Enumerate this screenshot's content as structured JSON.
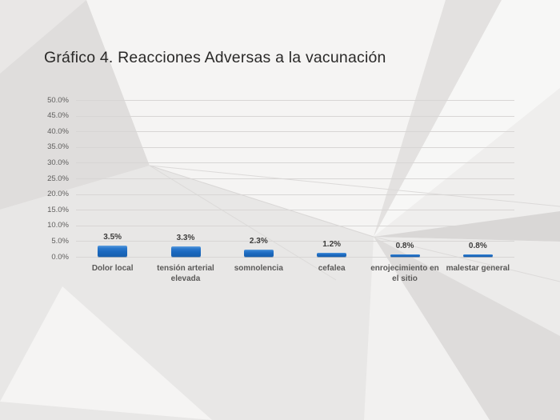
{
  "slide_title": "Gráfico 4. Reacciones Adversas a la vacunación",
  "colors": {
    "bar_fill": "#1b6cc4",
    "gridline": "#d8d6d5",
    "axis_text": "#5f5e5d",
    "value_text": "#3d3c3b",
    "title_text": "#2a2928"
  },
  "chart_data": {
    "type": "bar",
    "title": "Gráfico 4. Reacciones Adversas a la vacunación",
    "categories": [
      "Dolor local",
      "tensión arterial elevada",
      "somnolencia",
      "cefalea",
      "enrojecimiento en el sitio",
      "malestar general"
    ],
    "category_lines": [
      [
        "Dolor local"
      ],
      [
        "tensión arterial",
        "elevada"
      ],
      [
        "somnolencia"
      ],
      [
        "cefalea"
      ],
      [
        "enrojecimiento en",
        "el sitio"
      ],
      [
        "malestar general"
      ]
    ],
    "values": [
      3.5,
      3.3,
      2.3,
      1.2,
      0.8,
      0.8
    ],
    "value_labels": [
      "3.5%",
      "3.3%",
      "2.3%",
      "1.2%",
      "0.8%",
      "0.8%"
    ],
    "xlabel": "",
    "ylabel": "",
    "ylim": [
      0,
      50
    ],
    "ytick_step": 5,
    "ytick_labels": [
      "0.0%",
      "5.0%",
      "10.0%",
      "15.0%",
      "20.0%",
      "25.0%",
      "30.0%",
      "35.0%",
      "40.0%",
      "45.0%",
      "50.0%"
    ],
    "grid": true,
    "legend": false,
    "bar_color": "#1b6cc4"
  }
}
